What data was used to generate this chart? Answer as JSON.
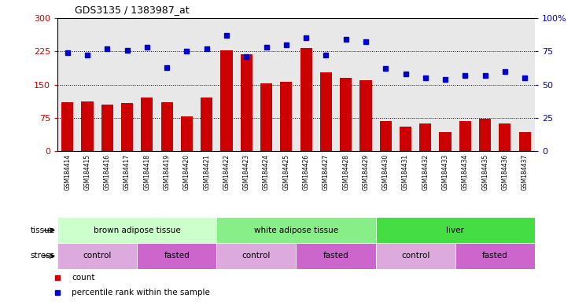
{
  "title": "GDS3135 / 1383987_at",
  "samples": [
    "GSM184414",
    "GSM184415",
    "GSM184416",
    "GSM184417",
    "GSM184418",
    "GSM184419",
    "GSM184420",
    "GSM184421",
    "GSM184422",
    "GSM184423",
    "GSM184424",
    "GSM184425",
    "GSM184426",
    "GSM184427",
    "GSM184428",
    "GSM184429",
    "GSM184430",
    "GSM184431",
    "GSM184432",
    "GSM184433",
    "GSM184434",
    "GSM184435",
    "GSM184436",
    "GSM184437"
  ],
  "counts": [
    110,
    112,
    105,
    108,
    120,
    110,
    78,
    120,
    228,
    218,
    152,
    157,
    232,
    178,
    165,
    160,
    68,
    55,
    62,
    42,
    68,
    72,
    63,
    42
  ],
  "percentiles": [
    74,
    72,
    77,
    76,
    78,
    63,
    75,
    77,
    87,
    71,
    78,
    80,
    85,
    72,
    84,
    82,
    62,
    58,
    55,
    54,
    57,
    57,
    60,
    55
  ],
  "ylim_left": [
    0,
    300
  ],
  "ylim_right": [
    0,
    100
  ],
  "yticks_left": [
    0,
    75,
    150,
    225,
    300
  ],
  "yticks_right": [
    0,
    25,
    50,
    75,
    100
  ],
  "ytick_right_labels": [
    "0",
    "25",
    "50",
    "75",
    "100%"
  ],
  "bar_color": "#cc0000",
  "dot_color": "#0000cc",
  "grid_lines": [
    75,
    150,
    225
  ],
  "tissue_groups": [
    {
      "label": "brown adipose tissue",
      "start": 0,
      "end": 8,
      "color": "#ccffcc"
    },
    {
      "label": "white adipose tissue",
      "start": 8,
      "end": 16,
      "color": "#88ee88"
    },
    {
      "label": "liver",
      "start": 16,
      "end": 24,
      "color": "#44dd44"
    }
  ],
  "stress_groups": [
    {
      "label": "control",
      "start": 0,
      "end": 4,
      "color": "#ddaadd"
    },
    {
      "label": "fasted",
      "start": 4,
      "end": 8,
      "color": "#cc66cc"
    },
    {
      "label": "control",
      "start": 8,
      "end": 12,
      "color": "#ddaadd"
    },
    {
      "label": "fasted",
      "start": 12,
      "end": 16,
      "color": "#cc66cc"
    },
    {
      "label": "control",
      "start": 16,
      "end": 20,
      "color": "#ddaadd"
    },
    {
      "label": "fasted",
      "start": 20,
      "end": 24,
      "color": "#cc66cc"
    }
  ],
  "legend_count_label": "count",
  "legend_pct_label": "percentile rank within the sample",
  "tissue_label": "tissue",
  "stress_label": "stress",
  "plot_bg_color": "#e8e8e8",
  "label_area_bg": "#d0d0d0"
}
